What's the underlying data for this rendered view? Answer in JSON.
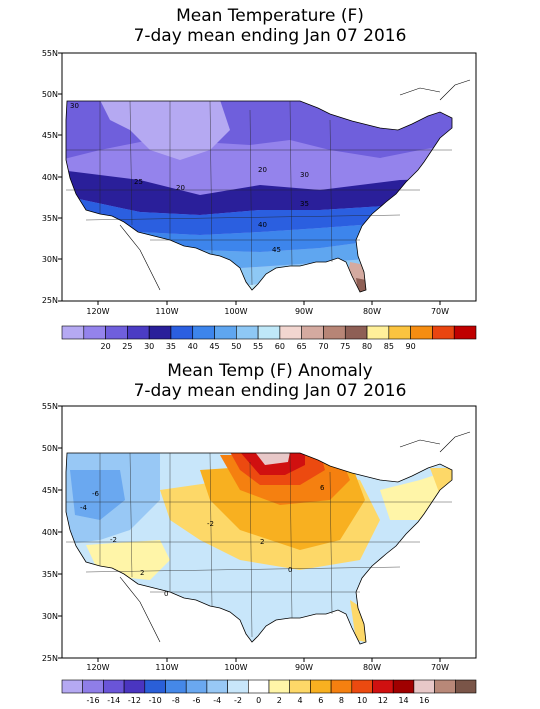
{
  "top_map": {
    "title_line1": "Mean Temperature (F)",
    "title_line2": "7-day mean ending Jan 07 2016",
    "lat_labels": [
      "55N",
      "50N",
      "45N",
      "40N",
      "35N",
      "30N",
      "25N"
    ],
    "lon_labels": [
      "120W",
      "110W",
      "100W",
      "90W",
      "80W",
      "70W"
    ],
    "contour_labels": [
      "25",
      "20",
      "20",
      "30",
      "35",
      "40",
      "45",
      "30"
    ],
    "legend": {
      "colors": [
        "#b5a9f2",
        "#9483ec",
        "#6f5fdc",
        "#4b3cc4",
        "#2a1f9a",
        "#2b5fe0",
        "#3d85ec",
        "#5fa6f0",
        "#8ec8f5",
        "#bfe8f8",
        "#f2d6d0",
        "#d4aaa0",
        "#b78576",
        "#8e5f55",
        "#fff09a",
        "#fbc440",
        "#f58d12",
        "#e94510",
        "#c00000"
      ],
      "labels": [
        "20",
        "25",
        "30",
        "35",
        "40",
        "45",
        "50",
        "55",
        "60",
        "65",
        "70",
        "75",
        "80",
        "85",
        "90"
      ]
    }
  },
  "bottom_map": {
    "title_line1": "Mean Temp (F) Anomaly",
    "title_line2": "7-day mean ending Jan 07 2016",
    "lat_labels": [
      "55N",
      "50N",
      "45N",
      "40N",
      "35N",
      "30N",
      "25N"
    ],
    "lon_labels": [
      "120W",
      "110W",
      "100W",
      "90W",
      "80W",
      "70W"
    ],
    "contour_labels": [
      "-6",
      "-4",
      "-2",
      "-2",
      "2",
      "0",
      "0",
      "2",
      "6"
    ],
    "legend": {
      "colors": [
        "#b5a9f2",
        "#8f7ee8",
        "#6a55d8",
        "#4a35c0",
        "#2a5fd8",
        "#4588e8",
        "#6aa8f0",
        "#98c8f5",
        "#c8e6fa",
        "#ffffff",
        "#fff5a8",
        "#fdd868",
        "#f8b020",
        "#f58010",
        "#ec4a10",
        "#d01010",
        "#a00000",
        "#e8c8c8",
        "#b88878",
        "#7a5548"
      ],
      "labels": [
        "-16",
        "-14",
        "-12",
        "-10",
        "-8",
        "-6",
        "-4",
        "-2",
        "0",
        "2",
        "4",
        "6",
        "8",
        "10",
        "12",
        "14",
        "16"
      ]
    }
  }
}
